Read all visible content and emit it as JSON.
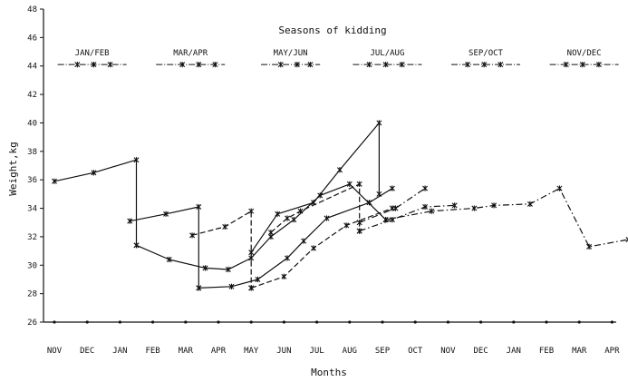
{
  "chart_data": {
    "type": "line",
    "title": "Seasons of kidding",
    "xlabel": "Months",
    "ylabel": "Weight,kg",
    "ylim": [
      26,
      48
    ],
    "yticks": [
      26,
      28,
      30,
      32,
      34,
      36,
      38,
      40,
      42,
      44,
      46,
      48
    ],
    "categories": [
      "NOV",
      "DEC",
      "JAN",
      "FEB",
      "MAR",
      "APR",
      "MAY",
      "JUN",
      "JUL",
      "AUG",
      "SEP",
      "OCT",
      "NOV",
      "DEC",
      "JAN",
      "FEB",
      "MAR",
      "APR"
    ],
    "grid": false,
    "line_color": "#111111",
    "seasons": [
      {
        "label": "JAN/FEB",
        "start": 0.1,
        "end": 2.2,
        "y": 44.1,
        "marks": [
          0.7,
          1.2,
          1.7
        ]
      },
      {
        "label": "MAR/APR",
        "start": 3.1,
        "end": 5.2,
        "y": 44.1,
        "marks": [
          3.9,
          4.4,
          4.9
        ]
      },
      {
        "label": "MAY/JUN",
        "start": 6.3,
        "end": 8.1,
        "y": 44.1,
        "marks": [
          6.9,
          7.4,
          7.8
        ]
      },
      {
        "label": "JUL/AUG",
        "start": 9.1,
        "end": 11.2,
        "y": 44.1,
        "marks": [
          9.6,
          10.1,
          10.6
        ]
      },
      {
        "label": "SEP/OCT",
        "start": 12.1,
        "end": 14.2,
        "y": 44.1,
        "marks": [
          12.6,
          13.1,
          13.6
        ]
      },
      {
        "label": "NOV/DEC",
        "start": 15.1,
        "end": 17.2,
        "y": 44.1,
        "marks": [
          15.6,
          16.1,
          16.6
        ]
      }
    ],
    "series": [
      {
        "style": "solid",
        "x": [
          0,
          1.2,
          2.5,
          2.5
        ],
        "y": [
          35.9,
          36.5,
          37.4,
          31.4
        ]
      },
      {
        "style": "solid",
        "x": [
          2.5,
          3.5,
          4.6,
          5.3,
          6.0,
          6.6,
          7.3,
          8.1,
          9.0,
          10.1
        ],
        "y": [
          31.4,
          30.4,
          29.8,
          29.7,
          30.5,
          32.0,
          33.2,
          34.9,
          35.7,
          33.2
        ]
      },
      {
        "style": "dashdot",
        "x": [
          10.1,
          11.5,
          12.8,
          13.4,
          14.5,
          15.4,
          16.3,
          17.5
        ],
        "y": [
          33.2,
          33.8,
          34.0,
          34.2,
          34.3,
          35.4,
          31.3,
          31.8
        ]
      },
      {
        "style": "solid",
        "x": [
          2.3,
          3.4,
          4.4,
          4.4
        ],
        "y": [
          33.1,
          33.6,
          34.1,
          28.4
        ]
      },
      {
        "style": "solid",
        "x": [
          4.4,
          5.4,
          6.2,
          7.1,
          7.6,
          8.3,
          9.6,
          10.3
        ],
        "y": [
          28.4,
          28.5,
          29.0,
          30.5,
          31.7,
          33.3,
          34.4,
          35.4
        ]
      },
      {
        "style": "dashed",
        "x": [
          4.2,
          5.2,
          6.0,
          6.0
        ],
        "y": [
          32.1,
          32.7,
          33.8,
          28.4
        ]
      },
      {
        "style": "dashed",
        "x": [
          6.0,
          7.0,
          7.9,
          8.9,
          10.3
        ],
        "y": [
          28.4,
          29.2,
          31.2,
          32.8,
          34.0
        ]
      },
      {
        "style": "solid",
        "x": [
          6.0,
          6.8,
          7.9,
          8.7,
          9.9,
          9.9
        ],
        "y": [
          30.9,
          33.6,
          34.4,
          36.7,
          40.0,
          35.0
        ]
      },
      {
        "style": "dashed",
        "x": [
          6.6,
          7.1,
          7.5,
          9.3,
          9.3
        ],
        "y": [
          32.3,
          33.3,
          33.8,
          35.7,
          32.4
        ]
      },
      {
        "style": "dashdot",
        "x": [
          9.3,
          10.3,
          11.3,
          12.2
        ],
        "y": [
          32.4,
          33.2,
          34.1,
          34.2
        ]
      },
      {
        "style": "dashdot",
        "x": [
          9.3,
          10.4,
          11.3
        ],
        "y": [
          33.0,
          34.0,
          35.4
        ]
      }
    ]
  }
}
